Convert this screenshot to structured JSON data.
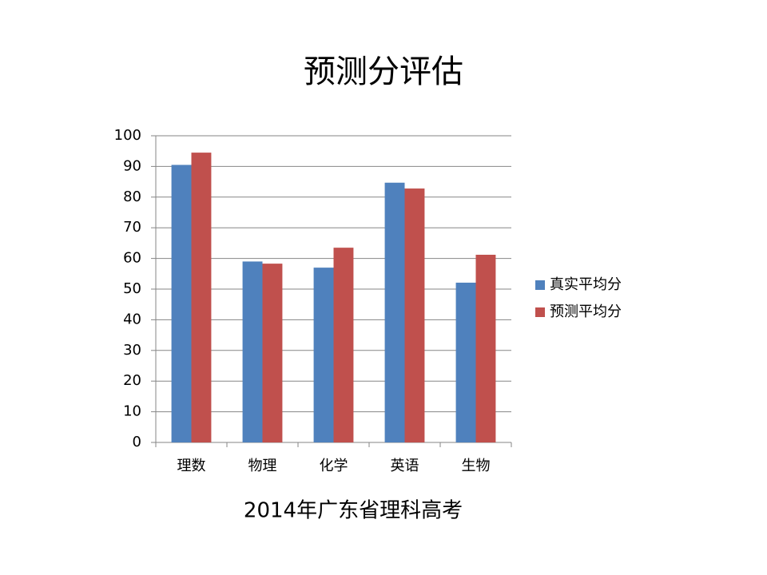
{
  "chart_data": {
    "type": "bar",
    "title": "预测分评估",
    "x_label": "2014年广东省理科高考",
    "categories": [
      "理数",
      "物理",
      "化学",
      "英语",
      "生物"
    ],
    "series": [
      {
        "name": "真实平均分",
        "color": "#4f81bd",
        "values": [
          90.5,
          59,
          57,
          84.7,
          52.1
        ]
      },
      {
        "name": "预测平均分",
        "color": "#c0504d",
        "values": [
          94.5,
          58.3,
          63.5,
          82.8,
          61.2
        ]
      }
    ],
    "ylim": [
      0,
      100
    ],
    "yticks": [
      0,
      10,
      20,
      30,
      40,
      50,
      60,
      70,
      80,
      90,
      100
    ],
    "grid": true,
    "legend": "right"
  }
}
